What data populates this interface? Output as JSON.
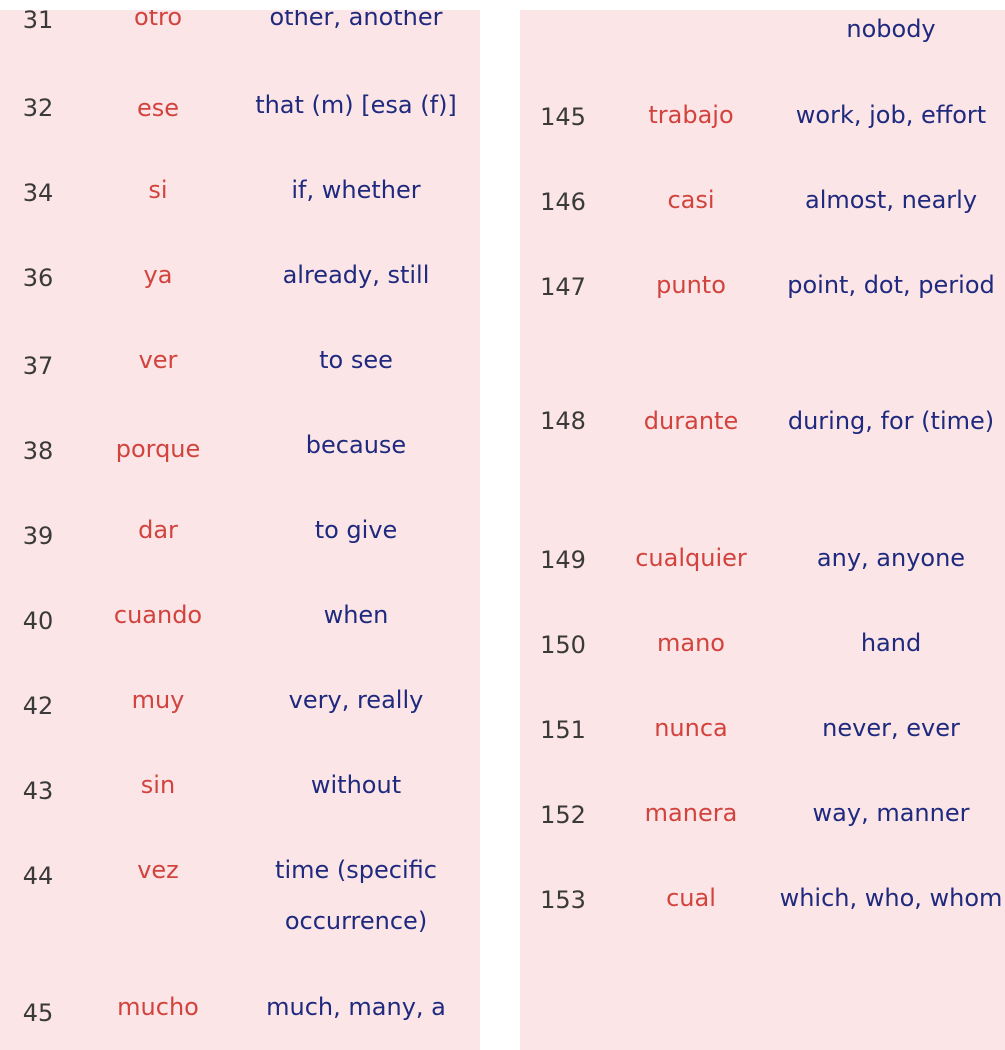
{
  "left_rows": [
    {
      "num": "31",
      "es": "otro",
      "en": "other, another"
    },
    {
      "num": "32",
      "es": "ese",
      "en": "that (m) [esa (f)]"
    },
    {
      "num": "34",
      "es": "si",
      "en": "if, whether"
    },
    {
      "num": "36",
      "es": "ya",
      "en": "already, still"
    },
    {
      "num": "37",
      "es": "ver",
      "en": "to see"
    },
    {
      "num": "38",
      "es": "porque",
      "en": "because"
    },
    {
      "num": "39",
      "es": "dar",
      "en": "to give"
    },
    {
      "num": "40",
      "es": "cuando",
      "en": "when"
    },
    {
      "num": "42",
      "es": "muy",
      "en": "very, really"
    },
    {
      "num": "43",
      "es": "sin",
      "en": "without"
    },
    {
      "num": "44",
      "es": "vez",
      "en": "time (specific occurrence)"
    },
    {
      "num": "45",
      "es": "mucho",
      "en": "much, many, a"
    }
  ],
  "right_top_partial": "nobody",
  "right_rows": [
    {
      "num": "145",
      "es": "trabajo",
      "en": "work, job, effort"
    },
    {
      "num": "146",
      "es": "casi",
      "en": "almost, nearly"
    },
    {
      "num": "147",
      "es": "punto",
      "en": "point, dot, period"
    },
    {
      "num": "148",
      "es": "durante",
      "en": "during, for (time)"
    },
    {
      "num": "149",
      "es": "cualquier",
      "en": "any, anyone"
    },
    {
      "num": "150",
      "es": "mano",
      "en": "hand"
    },
    {
      "num": "151",
      "es": "nunca",
      "en": "never, ever"
    },
    {
      "num": "152",
      "es": "manera",
      "en": "way, manner"
    },
    {
      "num": "153",
      "es": "cual",
      "en": "which, who, whom"
    }
  ]
}
